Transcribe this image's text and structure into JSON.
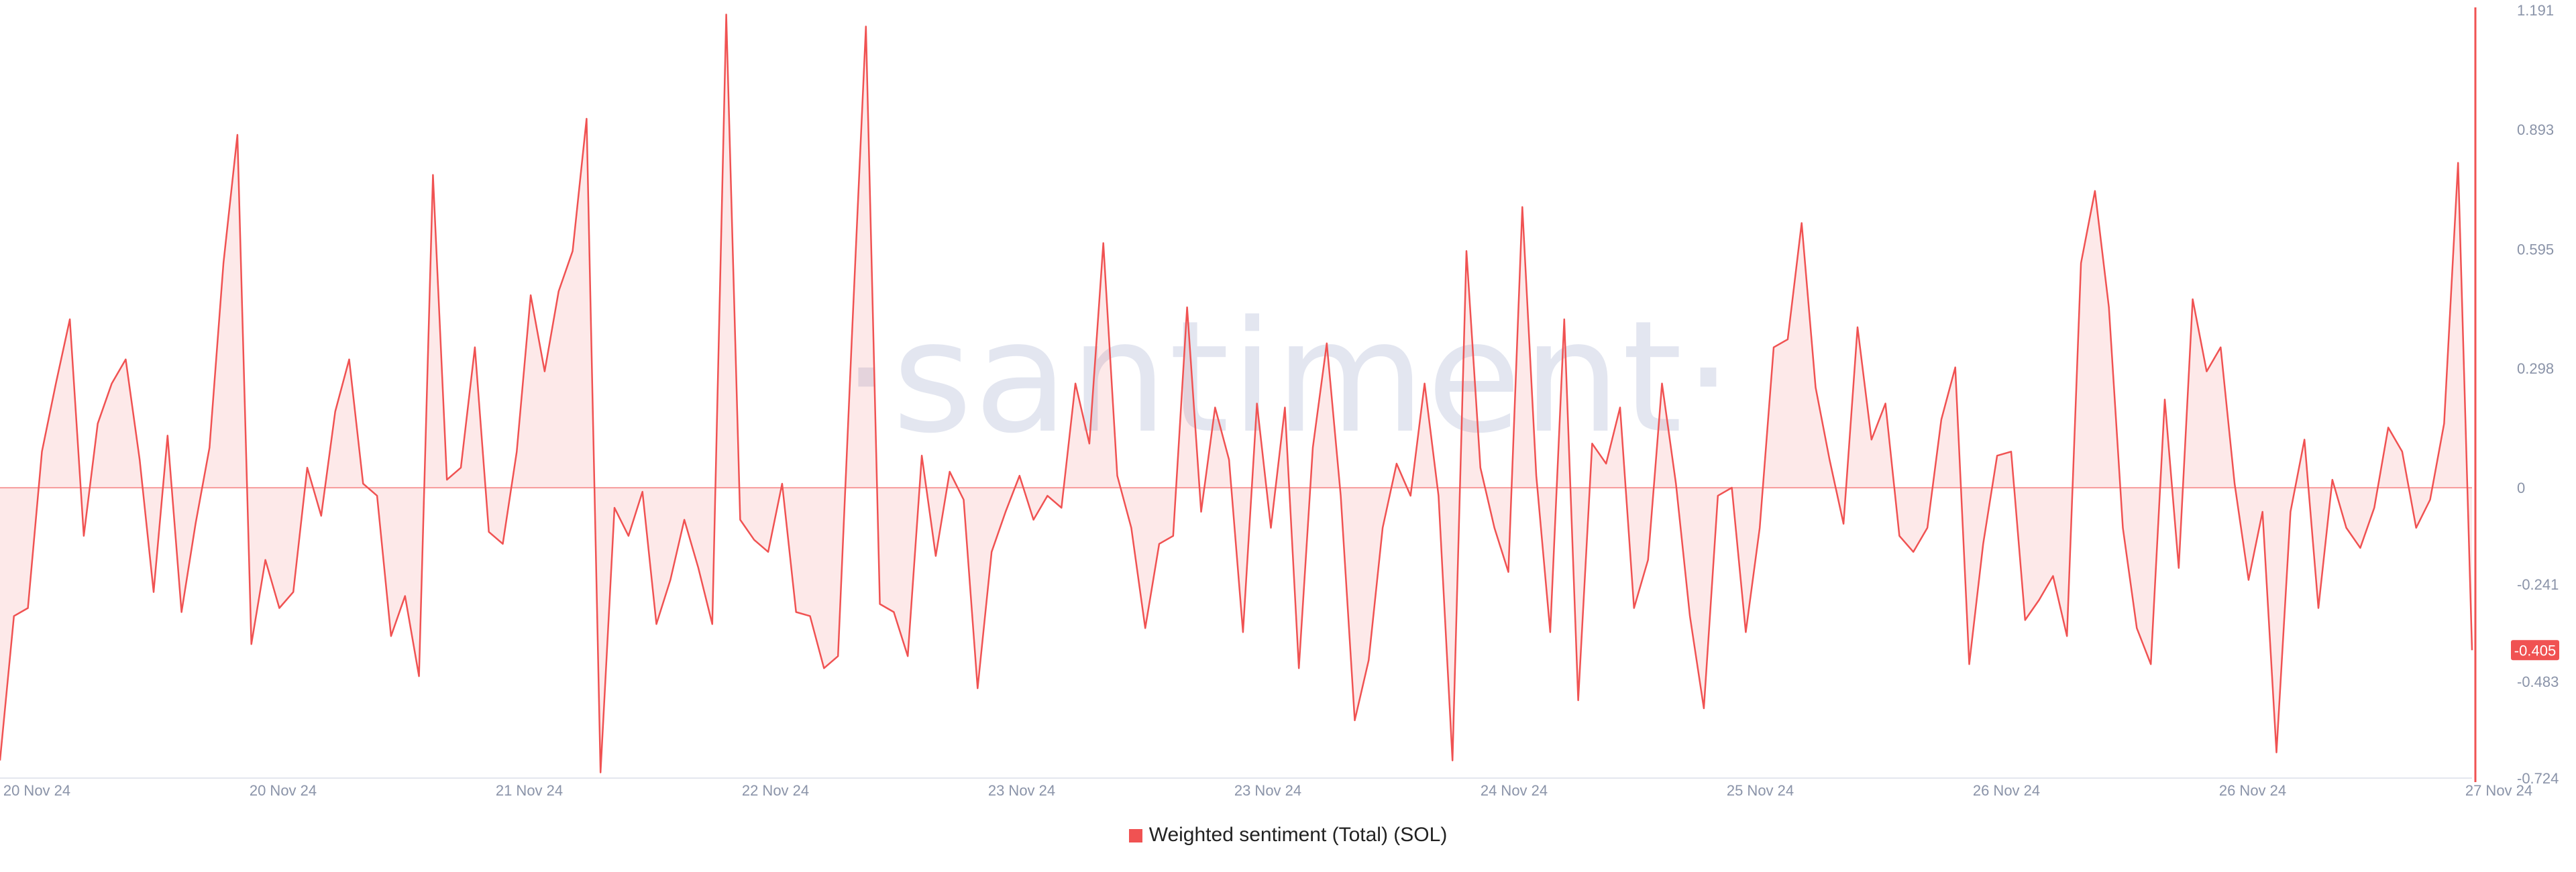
{
  "watermark": "·santiment·",
  "chart_data": {
    "type": "area",
    "title": "",
    "xlabel": "",
    "ylabel": "",
    "ylim": [
      -0.724,
      1.191
    ],
    "y_ticks": [
      "1.191",
      "0.893",
      "0.595",
      "0.298",
      "0",
      "-0.241",
      "-0.483",
      "-0.724"
    ],
    "x_ticks": [
      "20 Nov 24",
      "20 Nov 24",
      "21 Nov 24",
      "22 Nov 24",
      "23 Nov 24",
      "23 Nov 24",
      "24 Nov 24",
      "25 Nov 24",
      "26 Nov 24",
      "26 Nov 24",
      "27 Nov 24"
    ],
    "color": "#f05252",
    "grid": false,
    "legend_position": "bottom-center",
    "current_value": "-0.405",
    "series": [
      {
        "name": "Weighted sentiment (Total) (SOL)",
        "values": [
          -0.68,
          -0.32,
          -0.3,
          0.09,
          0.26,
          0.42,
          -0.12,
          0.16,
          0.26,
          0.32,
          0.07,
          -0.26,
          0.13,
          -0.31,
          -0.09,
          0.1,
          0.56,
          0.88,
          -0.39,
          -0.18,
          -0.3,
          -0.26,
          0.05,
          -0.07,
          0.19,
          0.32,
          0.01,
          -0.02,
          -0.37,
          -0.27,
          -0.47,
          0.78,
          0.02,
          0.05,
          0.35,
          -0.11,
          -0.14,
          0.09,
          0.48,
          0.29,
          0.49,
          0.59,
          0.92,
          -0.71,
          -0.05,
          -0.12,
          -0.01,
          -0.34,
          -0.23,
          -0.08,
          -0.2,
          -0.34,
          1.18,
          -0.08,
          -0.13,
          -0.16,
          0.01,
          -0.31,
          -0.32,
          -0.45,
          -0.42,
          0.38,
          1.15,
          -0.29,
          -0.31,
          -0.42,
          0.08,
          -0.17,
          0.04,
          -0.03,
          -0.5,
          -0.16,
          -0.06,
          0.03,
          -0.08,
          -0.02,
          -0.05,
          0.26,
          0.11,
          0.61,
          0.03,
          -0.1,
          -0.35,
          -0.14,
          -0.12,
          0.45,
          -0.06,
          0.2,
          0.07,
          -0.36,
          0.21,
          -0.1,
          0.2,
          -0.45,
          0.1,
          0.36,
          -0.02,
          -0.58,
          -0.43,
          -0.1,
          0.06,
          -0.02,
          0.26,
          -0.02,
          -0.68,
          0.59,
          0.05,
          -0.1,
          -0.21,
          0.7,
          0.03,
          -0.36,
          0.42,
          -0.53,
          0.11,
          0.06,
          0.2,
          -0.3,
          -0.18,
          0.26,
          0.01,
          -0.32,
          -0.55,
          -0.02,
          0.0,
          -0.36,
          -0.1,
          0.35,
          0.37,
          0.66,
          0.25,
          0.07,
          -0.09,
          0.4,
          0.12,
          0.21,
          -0.12,
          -0.16,
          -0.1,
          0.17,
          0.3,
          -0.44,
          -0.14,
          0.08,
          0.09,
          -0.33,
          -0.28,
          -0.22,
          -0.37,
          0.56,
          0.74,
          0.45,
          -0.1,
          -0.35,
          -0.44,
          0.22,
          -0.2,
          0.47,
          0.29,
          0.35,
          0.01,
          -0.23,
          -0.06,
          -0.66,
          -0.06,
          0.12,
          -0.3,
          0.02,
          -0.1,
          -0.15,
          -0.05,
          0.15,
          0.09,
          -0.1,
          -0.03,
          0.16,
          0.81,
          -0.405
        ]
      }
    ]
  }
}
